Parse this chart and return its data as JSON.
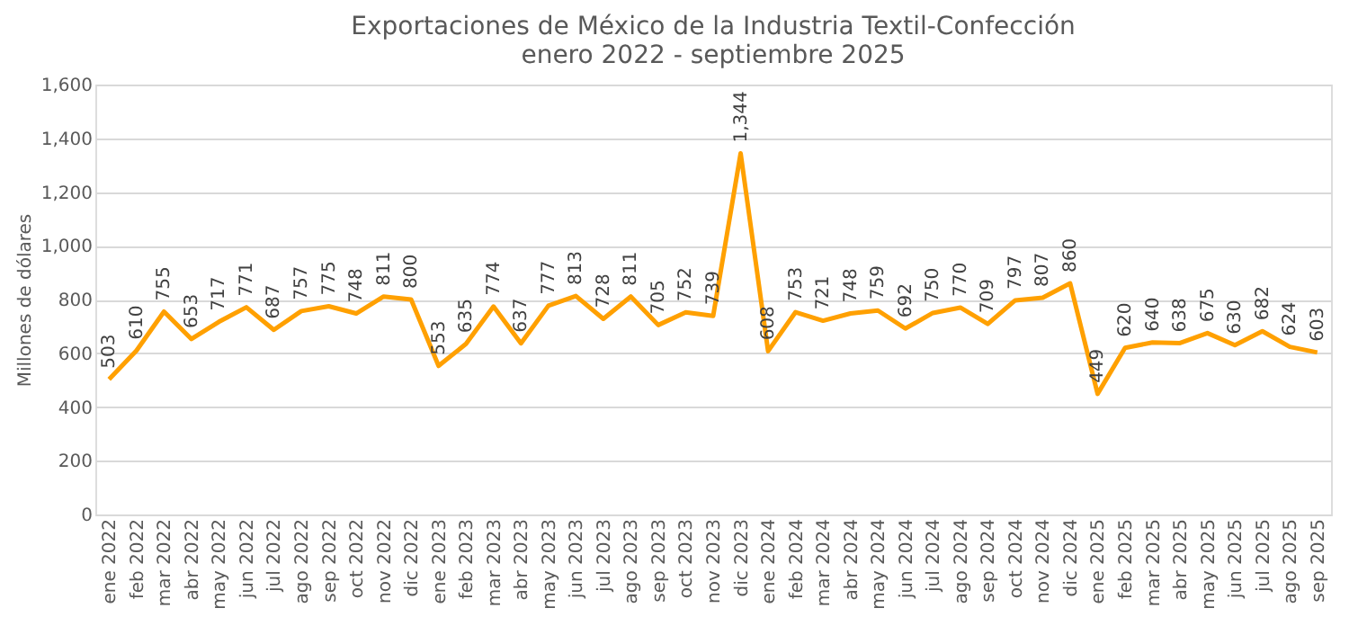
{
  "chart_data": {
    "type": "line",
    "title": [
      "Exportaciones de México de la Industria Textil-Confección",
      "enero 2022 -   septiembre 2025"
    ],
    "ylabel": "Millones de dólares",
    "categories": [
      "ene 2022",
      "feb 2022",
      "mar 2022",
      "abr 2022",
      "may 2022",
      "jun 2022",
      "jul 2022",
      "ago 2022",
      "sep 2022",
      "oct 2022",
      "nov 2022",
      "dic 2022",
      "ene 2023",
      "feb 2023",
      "mar 2023",
      "abr 2023",
      "may 2023",
      "jun 2023",
      "jul 2023",
      "ago 2023",
      "sep 2023",
      "oct 2023",
      "nov 2023",
      "dic 2023",
      "ene 2024",
      "feb 2024",
      "mar 2024",
      "abr 2024",
      "may 2024",
      "jun 2024",
      "jul 2024",
      "ago 2024",
      "sep 2024",
      "oct 2024",
      "nov 2024",
      "dic 2024",
      "ene 2025",
      "feb 2025",
      "mar 2025",
      "abr 2025",
      "may 2025",
      "jun 2025",
      "jul 2025",
      "ago 2025",
      "sep 2025"
    ],
    "series": [
      {
        "color": "#ffa000",
        "values": [
          503,
          610,
          755,
          653,
          717,
          771,
          687,
          757,
          775,
          748,
          811,
          800,
          553,
          635,
          774,
          637,
          777,
          813,
          728,
          811,
          705,
          752,
          739,
          1344,
          608,
          753,
          721,
          748,
          759,
          692,
          750,
          770,
          709,
          797,
          807,
          860,
          449,
          620,
          640,
          638,
          675,
          630,
          682,
          624,
          603
        ],
        "value_labels": [
          "503",
          "610",
          "755",
          "653",
          "717",
          "771",
          "687",
          "757",
          "775",
          "748",
          "811",
          "800",
          "553",
          "635",
          "774",
          "637",
          "777",
          "813",
          "728",
          "811",
          "705",
          "752",
          "739",
          "1,344",
          "608",
          "753",
          "721",
          "748",
          "759",
          "692",
          "750",
          "770",
          "709",
          "797",
          "807",
          "860",
          "449",
          "620",
          "640",
          "638",
          "675",
          "630",
          "682",
          "624",
          "603"
        ]
      }
    ],
    "ylim": [
      0,
      1600
    ],
    "yticks": [
      0,
      200,
      400,
      600,
      800,
      {
        "value": 1000,
        "label": "1,000"
      },
      {
        "value": 1200,
        "label": "1,200"
      },
      {
        "value": 1400,
        "label": "1,400"
      },
      {
        "value": 1600,
        "label": "1,600"
      }
    ],
    "grid": "y",
    "marker": "none",
    "line_style": "solid"
  }
}
